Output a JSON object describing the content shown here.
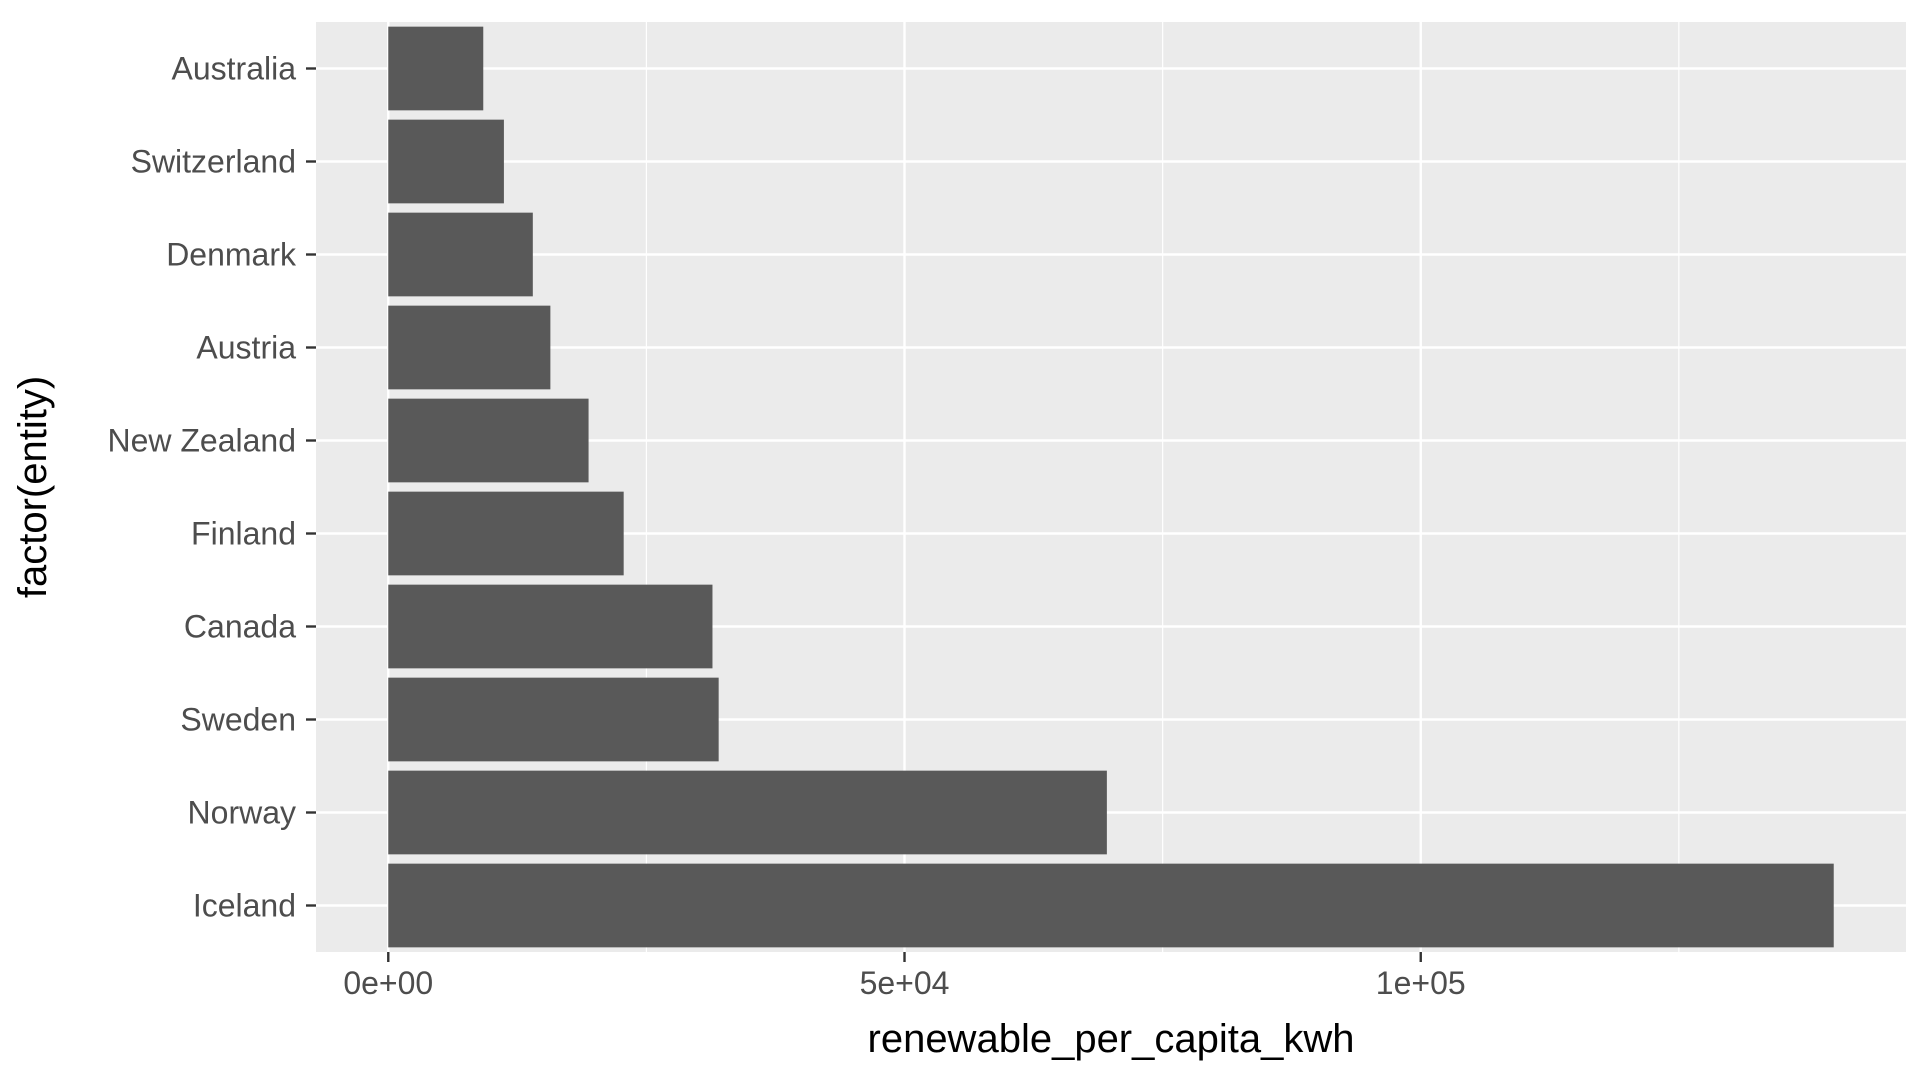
{
  "chart_data": {
    "type": "bar",
    "orientation": "horizontal",
    "categories": [
      "Australia",
      "Switzerland",
      "Denmark",
      "Austria",
      "New Zealand",
      "Finland",
      "Canada",
      "Sweden",
      "Norway",
      "Iceland"
    ],
    "values": [
      9200,
      11200,
      14000,
      15700,
      19400,
      22800,
      31400,
      32000,
      69600,
      140000
    ],
    "xlabel": "renewable_per_capita_kwh",
    "ylabel": "factor(entity)",
    "xlim": [
      -7000,
      147000
    ],
    "x_ticks": [
      {
        "value": 0,
        "label": "0e+00"
      },
      {
        "value": 50000,
        "label": "5e+04"
      },
      {
        "value": 100000,
        "label": "1e+05"
      }
    ],
    "x_minor_ticks": [
      25000,
      75000,
      125000
    ],
    "grid": true,
    "legend": "none",
    "colors": {
      "bar": "#595959",
      "panel": "#ebebeb",
      "grid": "#ffffff"
    }
  }
}
